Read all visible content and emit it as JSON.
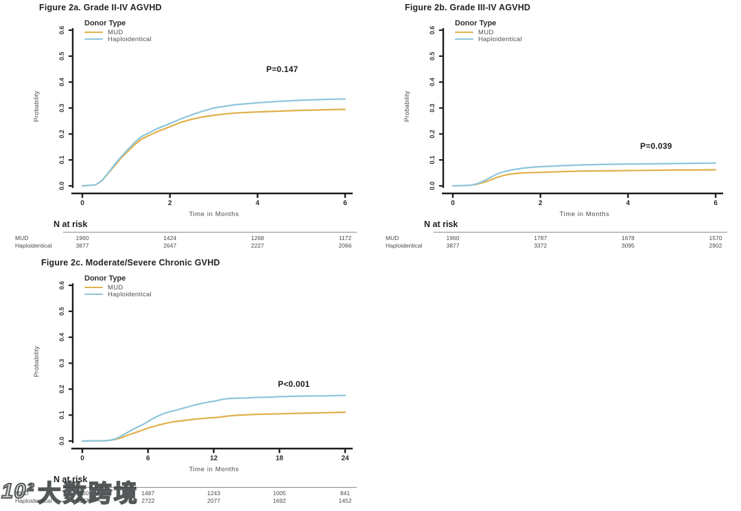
{
  "page": {
    "background": "#ffffff",
    "watermark": {
      "logo": "10²",
      "text": "大数跨境"
    }
  },
  "colors": {
    "mud": "#DFAF49",
    "haploidentical": "#8CC5DC",
    "axis": "#1c1c1c",
    "tick_text": "#333333",
    "title_text": "#222222"
  },
  "chart_data": [
    {
      "id": "fig2a",
      "type": "line",
      "title": "Figure 2a. Grade II-IV AGVHD",
      "legend_title": "Donor Type",
      "legend_position": "top-left",
      "xlabel": "Time in Months",
      "ylabel": "Probability",
      "p_value": "P=0.147",
      "xlim": [
        0,
        6
      ],
      "ylim": [
        0,
        0.6
      ],
      "xticks": [
        0,
        2,
        4,
        6
      ],
      "yticks": [
        0.0,
        0.1,
        0.2,
        0.3,
        0.4,
        0.5,
        0.6
      ],
      "grid": false,
      "series": [
        {
          "name": "MUD",
          "color": "#DFAF49",
          "points": [
            [
              0,
              0
            ],
            [
              0.3,
              0.004
            ],
            [
              0.45,
              0.02
            ],
            [
              0.6,
              0.05
            ],
            [
              0.75,
              0.08
            ],
            [
              0.9,
              0.11
            ],
            [
              1.05,
              0.135
            ],
            [
              1.2,
              0.16
            ],
            [
              1.35,
              0.18
            ],
            [
              1.5,
              0.193
            ],
            [
              1.7,
              0.208
            ],
            [
              2.0,
              0.228
            ],
            [
              2.25,
              0.245
            ],
            [
              2.5,
              0.257
            ],
            [
              2.75,
              0.266
            ],
            [
              3.0,
              0.272
            ],
            [
              3.25,
              0.277
            ],
            [
              3.5,
              0.281
            ],
            [
              4.0,
              0.285
            ],
            [
              4.5,
              0.288
            ],
            [
              5.0,
              0.291
            ],
            [
              5.5,
              0.293
            ],
            [
              6.0,
              0.295
            ]
          ]
        },
        {
          "name": "Haploidentical",
          "color": "#8CC5DC",
          "points": [
            [
              0,
              0
            ],
            [
              0.3,
              0.004
            ],
            [
              0.45,
              0.021
            ],
            [
              0.6,
              0.052
            ],
            [
              0.75,
              0.085
            ],
            [
              0.9,
              0.115
            ],
            [
              1.05,
              0.142
            ],
            [
              1.2,
              0.168
            ],
            [
              1.35,
              0.19
            ],
            [
              1.5,
              0.203
            ],
            [
              1.7,
              0.22
            ],
            [
              2.0,
              0.24
            ],
            [
              2.25,
              0.258
            ],
            [
              2.5,
              0.274
            ],
            [
              2.75,
              0.288
            ],
            [
              3.0,
              0.3
            ],
            [
              3.25,
              0.307
            ],
            [
              3.5,
              0.313
            ],
            [
              4.0,
              0.32
            ],
            [
              4.5,
              0.326
            ],
            [
              5.0,
              0.33
            ],
            [
              5.5,
              0.333
            ],
            [
              6.0,
              0.335
            ]
          ]
        }
      ],
      "n_at_risk": {
        "header": "N at risk",
        "timepoints": [
          0,
          2,
          4,
          6
        ],
        "rows": [
          {
            "label": "MUD",
            "values": [
              "1960",
              "1424",
              "1268",
              "1172"
            ]
          },
          {
            "label": "Haploidentical",
            "values": [
              "3877",
              "2647",
              "2227",
              "2066"
            ]
          }
        ]
      }
    },
    {
      "id": "fig2b",
      "type": "line",
      "title": "Figure 2b. Grade III-IV AGVHD",
      "legend_title": "Donor Type",
      "legend_position": "top-left",
      "xlabel": "Time in Months",
      "ylabel": "Probability",
      "p_value": "P=0.039",
      "xlim": [
        0,
        6
      ],
      "ylim": [
        0,
        0.6
      ],
      "xticks": [
        0,
        2,
        4,
        6
      ],
      "yticks": [
        0.0,
        0.1,
        0.2,
        0.3,
        0.4,
        0.5,
        0.6
      ],
      "grid": false,
      "series": [
        {
          "name": "MUD",
          "color": "#DFAF49",
          "points": [
            [
              0,
              0
            ],
            [
              0.4,
              0.002
            ],
            [
              0.55,
              0.006
            ],
            [
              0.7,
              0.013
            ],
            [
              0.85,
              0.022
            ],
            [
              1.0,
              0.032
            ],
            [
              1.15,
              0.04
            ],
            [
              1.3,
              0.045
            ],
            [
              1.5,
              0.049
            ],
            [
              1.75,
              0.051
            ],
            [
              2.0,
              0.052
            ],
            [
              2.5,
              0.055
            ],
            [
              3.0,
              0.057
            ],
            [
              3.5,
              0.058
            ],
            [
              4.0,
              0.059
            ],
            [
              4.5,
              0.06
            ],
            [
              5.0,
              0.061
            ],
            [
              5.5,
              0.061
            ],
            [
              6.0,
              0.062
            ]
          ]
        },
        {
          "name": "Haploidentical",
          "color": "#8CC5DC",
          "points": [
            [
              0,
              0
            ],
            [
              0.4,
              0.002
            ],
            [
              0.55,
              0.008
            ],
            [
              0.7,
              0.018
            ],
            [
              0.85,
              0.032
            ],
            [
              1.0,
              0.045
            ],
            [
              1.15,
              0.054
            ],
            [
              1.3,
              0.06
            ],
            [
              1.5,
              0.066
            ],
            [
              1.75,
              0.071
            ],
            [
              2.0,
              0.074
            ],
            [
              2.5,
              0.078
            ],
            [
              3.0,
              0.081
            ],
            [
              3.5,
              0.083
            ],
            [
              4.0,
              0.084
            ],
            [
              4.5,
              0.085
            ],
            [
              5.0,
              0.086
            ],
            [
              5.5,
              0.087
            ],
            [
              6.0,
              0.088
            ]
          ]
        }
      ],
      "n_at_risk": {
        "header": "N at risk",
        "timepoints": [
          0,
          2,
          4,
          6
        ],
        "rows": [
          {
            "label": "MUD",
            "values": [
              "1960",
              "1787",
              "1678",
              "1570"
            ]
          },
          {
            "label": "Haploidentical",
            "values": [
              "3877",
              "3372",
              "3095",
              "2902"
            ]
          }
        ]
      }
    },
    {
      "id": "fig2c",
      "type": "line",
      "title": "Figure 2c. Moderate/Severe Chronic GVHD",
      "legend_title": "Donor Type",
      "legend_position": "top-left",
      "xlabel": "Time in Months",
      "ylabel": "Probability",
      "p_value": "P<0.001",
      "xlim": [
        0,
        24
      ],
      "ylim": [
        0,
        0.6
      ],
      "xticks": [
        0,
        6,
        12,
        18,
        24
      ],
      "yticks": [
        0.0,
        0.1,
        0.2,
        0.3,
        0.4,
        0.5,
        0.6
      ],
      "grid": false,
      "series": [
        {
          "name": "MUD",
          "color": "#DFAF49",
          "points": [
            [
              0,
              0
            ],
            [
              2,
              0.001
            ],
            [
              2.5,
              0.003
            ],
            [
              3,
              0.006
            ],
            [
              3.5,
              0.012
            ],
            [
              4,
              0.02
            ],
            [
              4.5,
              0.028
            ],
            [
              5,
              0.035
            ],
            [
              5.5,
              0.042
            ],
            [
              6,
              0.05
            ],
            [
              6.5,
              0.056
            ],
            [
              7,
              0.062
            ],
            [
              7.5,
              0.067
            ],
            [
              8,
              0.072
            ],
            [
              8.5,
              0.075
            ],
            [
              9,
              0.078
            ],
            [
              9.5,
              0.08
            ],
            [
              10,
              0.083
            ],
            [
              10.5,
              0.085
            ],
            [
              11,
              0.087
            ],
            [
              11.5,
              0.089
            ],
            [
              12,
              0.09
            ],
            [
              12.5,
              0.092
            ],
            [
              13,
              0.095
            ],
            [
              13.5,
              0.097
            ],
            [
              14,
              0.099
            ],
            [
              15,
              0.101
            ],
            [
              16,
              0.103
            ],
            [
              17,
              0.104
            ],
            [
              18,
              0.105
            ],
            [
              19,
              0.106
            ],
            [
              20,
              0.107
            ],
            [
              21,
              0.108
            ],
            [
              22,
              0.109
            ],
            [
              23,
              0.11
            ],
            [
              24,
              0.111
            ]
          ]
        },
        {
          "name": "Haploidentical",
          "color": "#8CC5DC",
          "points": [
            [
              0,
              0
            ],
            [
              2,
              0.001
            ],
            [
              2.5,
              0.003
            ],
            [
              3,
              0.008
            ],
            [
              3.5,
              0.018
            ],
            [
              4,
              0.03
            ],
            [
              4.5,
              0.042
            ],
            [
              5,
              0.053
            ],
            [
              5.5,
              0.063
            ],
            [
              6,
              0.075
            ],
            [
              6.5,
              0.088
            ],
            [
              7,
              0.098
            ],
            [
              7.5,
              0.107
            ],
            [
              8,
              0.113
            ],
            [
              8.5,
              0.118
            ],
            [
              9,
              0.124
            ],
            [
              9.5,
              0.13
            ],
            [
              10,
              0.136
            ],
            [
              10.5,
              0.141
            ],
            [
              11,
              0.146
            ],
            [
              11.5,
              0.15
            ],
            [
              12,
              0.153
            ],
            [
              12.5,
              0.158
            ],
            [
              13,
              0.162
            ],
            [
              13.5,
              0.164
            ],
            [
              14,
              0.165
            ],
            [
              15,
              0.166
            ],
            [
              16,
              0.168
            ],
            [
              17,
              0.169
            ],
            [
              18,
              0.171
            ],
            [
              19,
              0.172
            ],
            [
              20,
              0.173
            ],
            [
              21,
              0.174
            ],
            [
              22,
              0.174
            ],
            [
              23,
              0.175
            ],
            [
              24,
              0.176
            ]
          ]
        }
      ],
      "n_at_risk": {
        "header": "N at risk",
        "timepoints": [
          0,
          6,
          12,
          18,
          24
        ],
        "rows": [
          {
            "label": "MUD",
            "values": [
              "1960",
              "1487",
              "1243",
              "1005",
              "841"
            ]
          },
          {
            "label": "Haploidentical",
            "values": [
              "3877",
              "2722",
              "2077",
              "1692",
              "1452"
            ]
          }
        ]
      }
    }
  ]
}
